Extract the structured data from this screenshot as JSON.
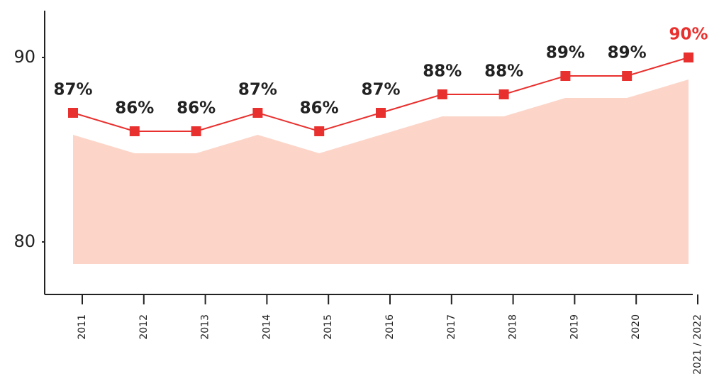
{
  "chart_data": {
    "type": "line",
    "categories": [
      "2011",
      "2012",
      "2013",
      "2014",
      "2015",
      "2016",
      "2017",
      "2018",
      "2019",
      "2020",
      "2021 / 2022"
    ],
    "series": [
      {
        "color": "#e8302e",
        "values": [
          87,
          86,
          86,
          87,
          86,
          87,
          88,
          88,
          89,
          89,
          90
        ]
      }
    ],
    "value_labels": [
      "87%",
      "86%",
      "86%",
      "87%",
      "86%",
      "87%",
      "88%",
      "88%",
      "89%",
      "89%",
      "90%"
    ],
    "value_label_colors": [
      "#222222",
      "#222222",
      "#222222",
      "#222222",
      "#222222",
      "#222222",
      "#222222",
      "#222222",
      "#222222",
      "#222222",
      "#e8302e"
    ],
    "area_color": "#fcd5c8",
    "ylim": [
      77.15,
      92.54
    ],
    "yticks": [
      80,
      90
    ]
  }
}
